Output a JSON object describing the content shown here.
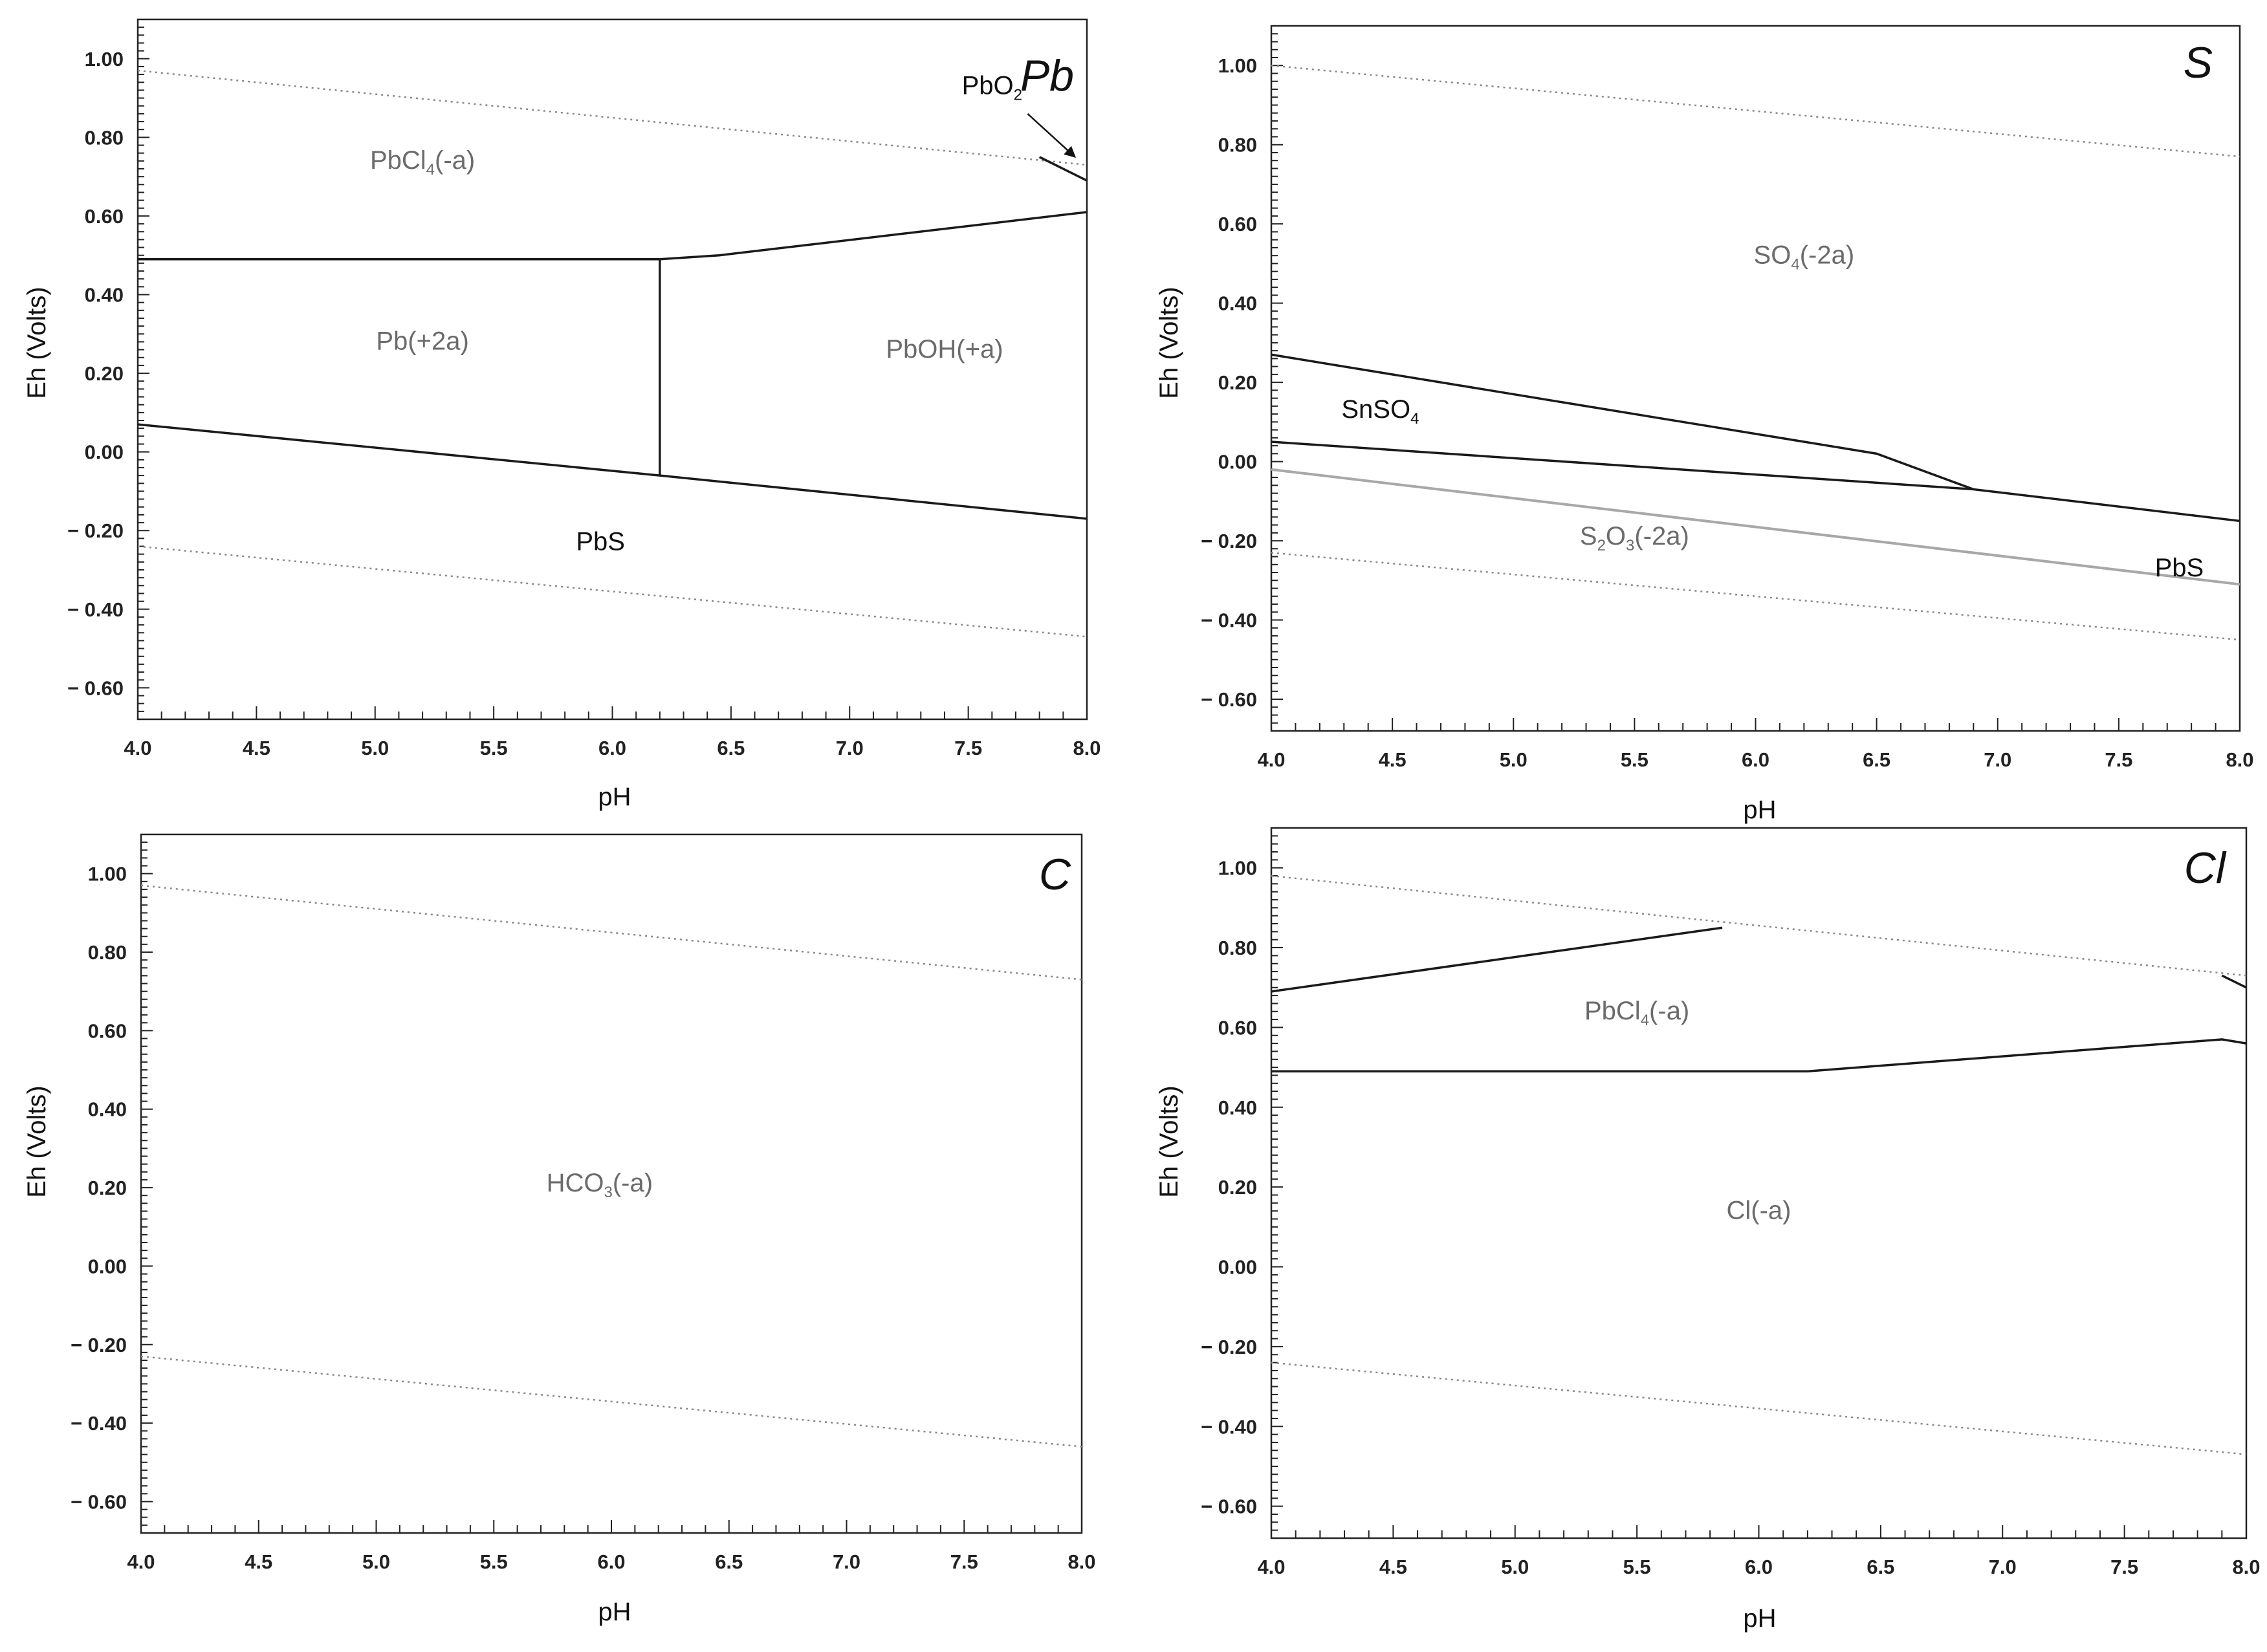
{
  "figure": {
    "description_free": true,
    "colors": {
      "boundary": "#1a1a1a",
      "gray_boundary": "#a8a8a8",
      "water_limit": "#888888",
      "label_dark": "#111111",
      "label_gray": "#6b6b6b",
      "axis": "#222222"
    }
  },
  "chart_data": [
    {
      "type": "line",
      "title": "Pb",
      "xlabel": "pH",
      "ylabel": "Eh (Volts)",
      "xlim": [
        4.0,
        8.0
      ],
      "ylim": [
        -0.68,
        1.1
      ],
      "xticks": [
        "4.0",
        "4.5",
        "5.0",
        "5.5",
        "6.0",
        "6.5",
        "7.0",
        "7.5",
        "8.0"
      ],
      "xtick_values": [
        4.0,
        4.5,
        5.0,
        5.5,
        6.0,
        6.5,
        7.0,
        7.5,
        8.0
      ],
      "yticks": [
        "1.00",
        "0.80",
        "0.60",
        "0.40",
        "0.20",
        "0.00",
        "− 0.20",
        "− 0.40",
        "− 0.60"
      ],
      "ytick_values": [
        1.0,
        0.8,
        0.6,
        0.4,
        0.2,
        0.0,
        -0.2,
        -0.4,
        -0.6
      ],
      "water_limits": [
        {
          "name": "upper water limit",
          "x": [
            4.0,
            8.0
          ],
          "y": [
            0.97,
            0.73
          ]
        },
        {
          "name": "lower water limit",
          "x": [
            4.0,
            8.0
          ],
          "y": [
            -0.24,
            -0.47
          ]
        }
      ],
      "series": [
        {
          "name": "PbCl4 / Pb2+ boundary",
          "style": "solid",
          "x": [
            4.0,
            6.2
          ],
          "y": [
            0.49,
            0.49
          ]
        },
        {
          "name": "PbCl4 / PbOH+ boundary",
          "style": "solid",
          "x": [
            6.2,
            6.45,
            8.0
          ],
          "y": [
            0.49,
            0.5,
            0.61
          ]
        },
        {
          "name": "Pb2+ / PbOH+ boundary",
          "style": "solid",
          "x": [
            6.2,
            6.2
          ],
          "y": [
            0.49,
            -0.06
          ]
        },
        {
          "name": "PbS upper boundary",
          "style": "solid",
          "x": [
            4.0,
            6.2,
            8.0
          ],
          "y": [
            0.07,
            -0.06,
            -0.17
          ]
        },
        {
          "name": "PbO2 boundary",
          "style": "solid",
          "x": [
            7.8,
            8.0
          ],
          "y": [
            0.75,
            0.69
          ]
        }
      ],
      "labels": [
        {
          "text": "PbCl",
          "sub": "4",
          "suffix": "(-a)",
          "x": 5.2,
          "y": 0.72,
          "tone": "gray"
        },
        {
          "text": "Pb(+2a)",
          "sub": "",
          "suffix": "",
          "x": 5.2,
          "y": 0.26,
          "tone": "gray"
        },
        {
          "text": "PbOH(+a)",
          "sub": "",
          "suffix": "",
          "x": 7.4,
          "y": 0.24,
          "tone": "gray"
        },
        {
          "text": "PbS",
          "sub": "",
          "suffix": "",
          "x": 5.95,
          "y": -0.25,
          "tone": "dark"
        },
        {
          "text": "PbO",
          "sub": "2",
          "suffix": "",
          "x": 7.6,
          "y": 0.91,
          "tone": "dark"
        }
      ],
      "arrows": [
        {
          "from": [
            7.75,
            0.86
          ],
          "to": [
            7.95,
            0.75
          ]
        }
      ]
    },
    {
      "type": "line",
      "title": "S",
      "xlabel": "pH",
      "ylabel": "Eh (Volts)",
      "xlim": [
        4.0,
        8.0
      ],
      "ylim": [
        -0.68,
        1.1
      ],
      "xticks": [
        "4.0",
        "4.5",
        "5.0",
        "5.5",
        "6.0",
        "6.5",
        "7.0",
        "7.5",
        "8.0"
      ],
      "xtick_values": [
        4.0,
        4.5,
        5.0,
        5.5,
        6.0,
        6.5,
        7.0,
        7.5,
        8.0
      ],
      "yticks": [
        "1.00",
        "0.80",
        "0.60",
        "0.40",
        "0.20",
        "0.00",
        "− 0.20",
        "− 0.40",
        "− 0.60"
      ],
      "ytick_values": [
        1.0,
        0.8,
        0.6,
        0.4,
        0.2,
        0.0,
        -0.2,
        -0.4,
        -0.6
      ],
      "water_limits": [
        {
          "name": "upper water limit",
          "x": [
            4.0,
            8.0
          ],
          "y": [
            1.0,
            0.77
          ]
        },
        {
          "name": "lower water limit",
          "x": [
            4.0,
            8.0
          ],
          "y": [
            -0.23,
            -0.45
          ]
        }
      ],
      "series": [
        {
          "name": "SO4 / SnSO4 boundary",
          "style": "solid",
          "x": [
            4.0,
            6.5,
            6.9
          ],
          "y": [
            0.27,
            0.02,
            -0.07
          ]
        },
        {
          "name": "SnSO4 / PbS boundary",
          "style": "solid",
          "x": [
            4.0,
            6.9,
            8.0
          ],
          "y": [
            0.05,
            -0.07,
            -0.15
          ]
        },
        {
          "name": "S2O3 boundary",
          "style": "gray",
          "x": [
            4.0,
            8.0
          ],
          "y": [
            -0.02,
            -0.31
          ]
        }
      ],
      "labels": [
        {
          "text": "SO",
          "sub": "4",
          "suffix": "(-2a)",
          "x": 6.2,
          "y": 0.5,
          "tone": "gray"
        },
        {
          "text": "SnSO",
          "sub": "4",
          "suffix": "",
          "x": 4.45,
          "y": 0.11,
          "tone": "dark"
        },
        {
          "text": "S",
          "sub": "2",
          "suffix": "O3(-2a)",
          "x": 5.5,
          "y": -0.21,
          "tone": "gray"
        },
        {
          "text": "PbS",
          "sub": "",
          "suffix": "",
          "x": 7.75,
          "y": -0.29,
          "tone": "dark"
        }
      ],
      "arrows": []
    },
    {
      "type": "line",
      "title": "C",
      "xlabel": "pH",
      "ylabel": "Eh (Volts)",
      "xlim": [
        4.0,
        8.0
      ],
      "ylim": [
        -0.68,
        1.1
      ],
      "xticks": [
        "4.0",
        "4.5",
        "5.0",
        "5.5",
        "6.0",
        "6.5",
        "7.0",
        "7.5",
        "8.0"
      ],
      "xtick_values": [
        4.0,
        4.5,
        5.0,
        5.5,
        6.0,
        6.5,
        7.0,
        7.5,
        8.0
      ],
      "yticks": [
        "1.00",
        "0.80",
        "0.60",
        "0.40",
        "0.20",
        "0.00",
        "− 0.20",
        "− 0.40",
        "− 0.60"
      ],
      "ytick_values": [
        1.0,
        0.8,
        0.6,
        0.4,
        0.2,
        0.0,
        -0.2,
        -0.4,
        -0.6
      ],
      "water_limits": [
        {
          "name": "upper water limit",
          "x": [
            4.0,
            8.0
          ],
          "y": [
            0.97,
            0.73
          ]
        },
        {
          "name": "lower water limit",
          "x": [
            4.0,
            8.0
          ],
          "y": [
            -0.23,
            -0.46
          ]
        }
      ],
      "series": [],
      "labels": [
        {
          "text": "HCO",
          "sub": "3",
          "suffix": "(-a)",
          "x": 5.95,
          "y": 0.19,
          "tone": "gray"
        }
      ],
      "arrows": []
    },
    {
      "type": "line",
      "title": "Cl",
      "xlabel": "pH",
      "ylabel": "Eh (Volts)",
      "xlim": [
        4.0,
        8.0
      ],
      "ylim": [
        -0.68,
        1.1
      ],
      "xticks": [
        "4.0",
        "4.5",
        "5.0",
        "5.5",
        "6.0",
        "6.5",
        "7.0",
        "7.5",
        "8.0"
      ],
      "xtick_values": [
        4.0,
        4.5,
        5.0,
        5.5,
        6.0,
        6.5,
        7.0,
        7.5,
        8.0
      ],
      "yticks": [
        "1.00",
        "0.80",
        "0.60",
        "0.40",
        "0.20",
        "0.00",
        "− 0.20",
        "− 0.40",
        "− 0.60"
      ],
      "ytick_values": [
        1.0,
        0.8,
        0.6,
        0.4,
        0.2,
        0.0,
        -0.2,
        -0.4,
        -0.6
      ],
      "water_limits": [
        {
          "name": "upper water limit",
          "x": [
            4.0,
            8.0
          ],
          "y": [
            0.98,
            0.73
          ]
        },
        {
          "name": "lower water limit",
          "x": [
            4.0,
            8.0
          ],
          "y": [
            -0.24,
            -0.47
          ]
        }
      ],
      "series": [
        {
          "name": "PbO2 / PbCl4 boundary",
          "style": "solid",
          "x": [
            4.0,
            5.85
          ],
          "y": [
            0.69,
            0.85
          ]
        },
        {
          "name": "PbCl4 / Cl- boundary",
          "style": "solid",
          "x": [
            4.0,
            6.2,
            7.9,
            8.0
          ],
          "y": [
            0.49,
            0.49,
            0.57,
            0.56
          ]
        },
        {
          "name": "PbO2 corner",
          "style": "solid",
          "x": [
            7.9,
            8.0
          ],
          "y": [
            0.73,
            0.7
          ]
        }
      ],
      "labels": [
        {
          "text": "PbCl",
          "sub": "4",
          "suffix": "(-a)",
          "x": 5.5,
          "y": 0.62,
          "tone": "gray"
        },
        {
          "text": "Cl(-a)",
          "sub": "",
          "suffix": "",
          "x": 6.0,
          "y": 0.12,
          "tone": "gray"
        }
      ],
      "arrows": []
    }
  ]
}
